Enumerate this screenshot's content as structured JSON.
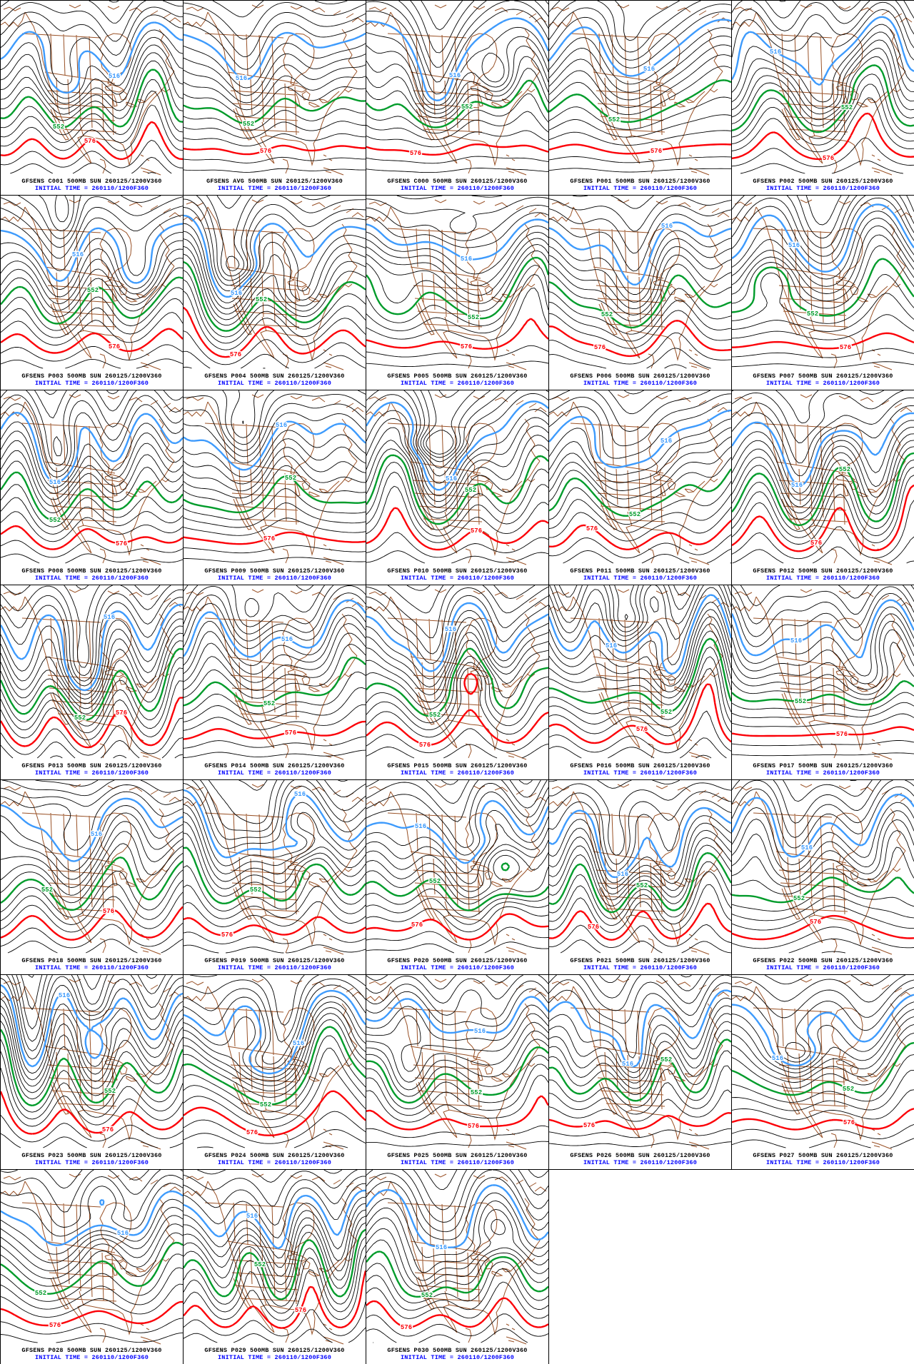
{
  "page": {
    "description": "GFS ensemble 500MB height forecast multi-panel grid (33 member maps over North America)",
    "region": "North America",
    "grid": {
      "rows": 7,
      "cols": 5,
      "panel_count": 33
    },
    "colors": {
      "background": "#ffffff",
      "panel_border": "#000000",
      "black_contour": "#000000",
      "geography_outline": "#995126",
      "title_text": "#000000",
      "initial_time_text": "#0000ff"
    }
  },
  "contours": {
    "parameter": "500MB HEIGHTS",
    "interval_dam": 6,
    "minor_color": "#000000",
    "highlighted": [
      {
        "level": 516,
        "label": "516",
        "color": "#3d9afc"
      },
      {
        "level": 552,
        "label": "552",
        "color": "#009b2a"
      },
      {
        "level": 576,
        "label": "576",
        "color": "#fb0007"
      }
    ]
  },
  "panels": [
    {
      "id": "C001",
      "title": "GFSENS C001 500MB SUN 260125/1200V360",
      "initial": "INITIAL TIME = 260110/1200F360"
    },
    {
      "id": "AVG",
      "title": "GFSENS AVG 500MB SUN 260125/1200V360",
      "initial": "INITIAL TIME = 260110/1200F360"
    },
    {
      "id": "C000",
      "title": "GFSENS C000 500MB SUN 260125/1200V360",
      "initial": "INITIAL TIME = 260110/1200F360"
    },
    {
      "id": "P001",
      "title": "GFSENS P001 500MB SUN 260125/1200V360",
      "initial": "INITIAL TIME = 260110/1200F360"
    },
    {
      "id": "P002",
      "title": "GFSENS P002 500MB SUN 260125/1200V360",
      "initial": "INITIAL TIME = 260110/1200F360"
    },
    {
      "id": "P003",
      "title": "GFSENS P003 500MB SUN 260125/1200V360",
      "initial": "INITIAL TIME = 260110/1200F360"
    },
    {
      "id": "P004",
      "title": "GFSENS P004 500MB SUN 260125/1200V360",
      "initial": "INITIAL TIME = 260110/1200F360"
    },
    {
      "id": "P005",
      "title": "GFSENS P005 500MB SUN 260125/1200V360",
      "initial": "INITIAL TIME = 260110/1200F360"
    },
    {
      "id": "P006",
      "title": "GFSENS P006 500MB SUN 260125/1200V360",
      "initial": "INITIAL TIME = 260110/1200F360"
    },
    {
      "id": "P007",
      "title": "GFSENS P007 500MB SUN 260125/1200V360",
      "initial": "INITIAL TIME = 260110/1200F360"
    },
    {
      "id": "P008",
      "title": "GFSENS P008 500MB SUN 260125/1200V360",
      "initial": "INITIAL TIME = 260110/1200F360"
    },
    {
      "id": "P009",
      "title": "GFSENS P009 500MB SUN 260125/1200V360",
      "initial": "INITIAL TIME = 260110/1200F360"
    },
    {
      "id": "P010",
      "title": "GFSENS P010 500MB SUN 260125/1200V360",
      "initial": "INITIAL TIME = 260110/1200F360"
    },
    {
      "id": "P011",
      "title": "GFSENS P011 500MB SUN 260125/1200V360",
      "initial": "INITIAL TIME = 260110/1200F360"
    },
    {
      "id": "P012",
      "title": "GFSENS P012 500MB SUN 260125/1200V360",
      "initial": "INITIAL TIME = 260110/1200F360"
    },
    {
      "id": "P013",
      "title": "GFSENS P013 500MB SUN 260125/1200V360",
      "initial": "INITIAL TIME = 260110/1200F360"
    },
    {
      "id": "P014",
      "title": "GFSENS P014 500MB SUN 260125/1200V360",
      "initial": "INITIAL TIME = 260110/1200F360"
    },
    {
      "id": "P015",
      "title": "GFSENS P015 500MB SUN 260125/1200V360",
      "initial": "INITIAL TIME = 260110/1200F360"
    },
    {
      "id": "P016",
      "title": "GFSENS P016 500MB SUN 260125/1200V360",
      "initial": "INITIAL TIME = 260110/1200F360"
    },
    {
      "id": "P017",
      "title": "GFSENS P017 500MB SUN 260125/1200V360",
      "initial": "INITIAL TIME = 260110/1200F360"
    },
    {
      "id": "P018",
      "title": "GFSENS P018 500MB SUN 260125/1200V360",
      "initial": "INITIAL TIME = 260110/1200F360"
    },
    {
      "id": "P019",
      "title": "GFSENS P019 500MB SUN 260125/1200V360",
      "initial": "INITIAL TIME = 260110/1200F360"
    },
    {
      "id": "P020",
      "title": "GFSENS P020 500MB SUN 260125/1200V360",
      "initial": "INITIAL TIME = 260110/1200F360"
    },
    {
      "id": "P021",
      "title": "GFSENS P021 500MB SUN 260125/1200V360",
      "initial": "INITIAL TIME = 260110/1200F360"
    },
    {
      "id": "P022",
      "title": "GFSENS P022 500MB SUN 260125/1200V360",
      "initial": "INITIAL TIME = 260110/1200F360"
    },
    {
      "id": "P023",
      "title": "GFSENS P023 500MB SUN 260125/1200V360",
      "initial": "INITIAL TIME = 260110/1200F360"
    },
    {
      "id": "P024",
      "title": "GFSENS P024 500MB SUN 260125/1200V360",
      "initial": "INITIAL TIME = 260110/1200F360"
    },
    {
      "id": "P025",
      "title": "GFSENS P025 500MB SUN 260125/1200V360",
      "initial": "INITIAL TIME = 260110/1200F360"
    },
    {
      "id": "P026",
      "title": "GFSENS P026 500MB SUN 260125/1200V360",
      "initial": "INITIAL TIME = 260110/1200F360"
    },
    {
      "id": "P027",
      "title": "GFSENS P027 500MB SUN 260125/1200V360",
      "initial": "INITIAL TIME = 260110/1200F360"
    },
    {
      "id": "P028",
      "title": "GFSENS P028 500MB SUN 260125/1200V360",
      "initial": "INITIAL TIME = 260110/1200F360"
    },
    {
      "id": "P029",
      "title": "GFSENS P029 500MB SUN 260125/1200V360",
      "initial": "INITIAL TIME = 260110/1200F360"
    },
    {
      "id": "P030",
      "title": "GFSENS P030 500MB SUN 260125/1200V360",
      "initial": "INITIAL TIME = 260110/1200F360"
    }
  ]
}
